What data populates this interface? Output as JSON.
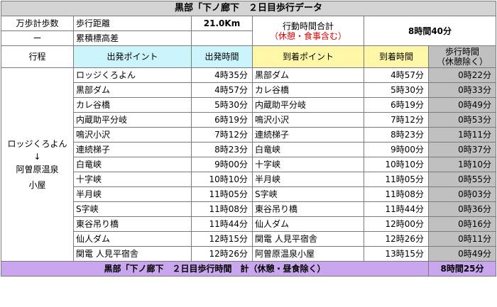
{
  "title": "黒部「下ノ廊下　２日目歩行データ",
  "summary": {
    "steps_label": "万歩計歩数",
    "steps_value": "ー",
    "distance_label": "歩行距離",
    "distance_value": "21.0Km",
    "elevation_label": "累積標高差",
    "elevation_value": "",
    "time_total_label": "行動時間合計",
    "time_total_note": "（休憩・食事含む）",
    "time_total_value": "8時間40分"
  },
  "headers": {
    "route": "行程",
    "start_point": "出発ポイント",
    "start_time": "出発時間",
    "end_point": "到着ポイント",
    "end_time": "到着時間",
    "walk_time": "歩行時間",
    "walk_time_note": "（休憩除く）"
  },
  "route_label": {
    "from": "ロッジくろよん",
    "arrow": "↓",
    "to_line1": "阿曽原温泉",
    "to_line2": "小屋"
  },
  "rows": [
    {
      "start_point": "ロッジくろよん",
      "start_time": "4時35分",
      "end_point": "黒部ダム",
      "end_time": "4時57分",
      "walk_time": "0時22分"
    },
    {
      "start_point": "黒部ダム",
      "start_time": "4時57分",
      "end_point": "カレ谷橋",
      "end_time": "5時30分",
      "walk_time": "0時33分"
    },
    {
      "start_point": "カレ谷橋",
      "start_time": "5時30分",
      "end_point": "内蔵助平分岐",
      "end_time": "6時19分",
      "walk_time": "0時49分"
    },
    {
      "start_point": "内蔵助平分岐",
      "start_time": "6時19分",
      "end_point": "鳴沢小沢",
      "end_time": "7時12分",
      "walk_time": "0時53分"
    },
    {
      "start_point": "鳴沢小沢",
      "start_time": "7時12分",
      "end_point": "連続梯子",
      "end_time": "8時23分",
      "walk_time": "1時11分"
    },
    {
      "start_point": "連続梯子",
      "start_time": "8時23分",
      "end_point": "白竜峡",
      "end_time": "9時00分",
      "walk_time": "0時37分"
    },
    {
      "start_point": "白竜峡",
      "start_time": "9時00分",
      "end_point": "十字峡",
      "end_time": "10時10分",
      "walk_time": "1時10分"
    },
    {
      "start_point": "十字峡",
      "start_time": "10時10分",
      "end_point": "半月峡",
      "end_time": "11時05分",
      "walk_time": "0時55分"
    },
    {
      "start_point": "半月峡",
      "start_time": "11時05分",
      "end_point": "S字峡",
      "end_time": "11時08分",
      "walk_time": "0時03分"
    },
    {
      "start_point": "S字峡",
      "start_time": "11時08分",
      "end_point": "東谷吊り橋",
      "end_time": "11時44分",
      "walk_time": "0時36分"
    },
    {
      "start_point": "東谷吊り橋",
      "start_time": "11時44分",
      "end_point": "仙人ダム",
      "end_time": "12時00分",
      "walk_time": "0時16分"
    },
    {
      "start_point": "仙人ダム",
      "start_time": "12時15分",
      "end_point": "関電 人見平宿舎",
      "end_time": "12時26分",
      "walk_time": "0時11分"
    },
    {
      "start_point": "関電 人見平宿舎",
      "start_time": "12時26分",
      "end_point": "阿曽原温泉小屋",
      "end_time": "13時15分",
      "walk_time": "0時49分"
    }
  ],
  "footer": {
    "label": "黒部「下ノ廊下　２日目歩行時間　計（休憩・昼食除く）",
    "value": "8時間25分"
  },
  "colors": {
    "start_header": "#ccf4fb",
    "end_header": "#fff7a8",
    "walk_time_column": "#c0c0c0",
    "footer": "#c9a6ee",
    "note_text": "#e00000"
  }
}
